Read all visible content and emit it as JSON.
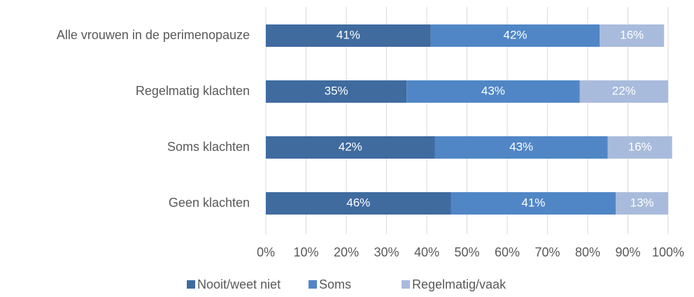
{
  "chart_data": {
    "type": "stacked_barh",
    "categories": [
      "Alle vrouwen in de perimenopauze",
      "Regelmatig klachten",
      "Soms klachten",
      "Geen klachten"
    ],
    "series": [
      {
        "name": "Nooit/weet niet",
        "color": "#3f6b9f",
        "values": [
          41,
          35,
          42,
          46
        ],
        "value_labels": [
          "41%",
          "35%",
          "42%",
          "46%"
        ]
      },
      {
        "name": "Soms",
        "color": "#5086c6",
        "values": [
          42,
          43,
          43,
          41
        ],
        "value_labels": [
          "42%",
          "43%",
          "43%",
          "41%"
        ]
      },
      {
        "name": "Regelmatig/vaak",
        "color": "#a9bbdc",
        "values": [
          16,
          22,
          16,
          13
        ],
        "value_labels": [
          "16%",
          "22%",
          "16%",
          "13%"
        ]
      }
    ],
    "xlim": [
      0,
      100
    ],
    "xticks": [
      {
        "value": 0,
        "label": "0%"
      },
      {
        "value": 10,
        "label": "10%"
      },
      {
        "value": 20,
        "label": "20%"
      },
      {
        "value": 30,
        "label": "30%"
      },
      {
        "value": 40,
        "label": "40%"
      },
      {
        "value": 50,
        "label": "50%"
      },
      {
        "value": 60,
        "label": "60%"
      },
      {
        "value": 70,
        "label": "70%"
      },
      {
        "value": 80,
        "label": "80%"
      },
      {
        "value": 90,
        "label": "90%"
      },
      {
        "value": 100,
        "label": "100%"
      }
    ],
    "grid": true,
    "legend": "bottom"
  }
}
